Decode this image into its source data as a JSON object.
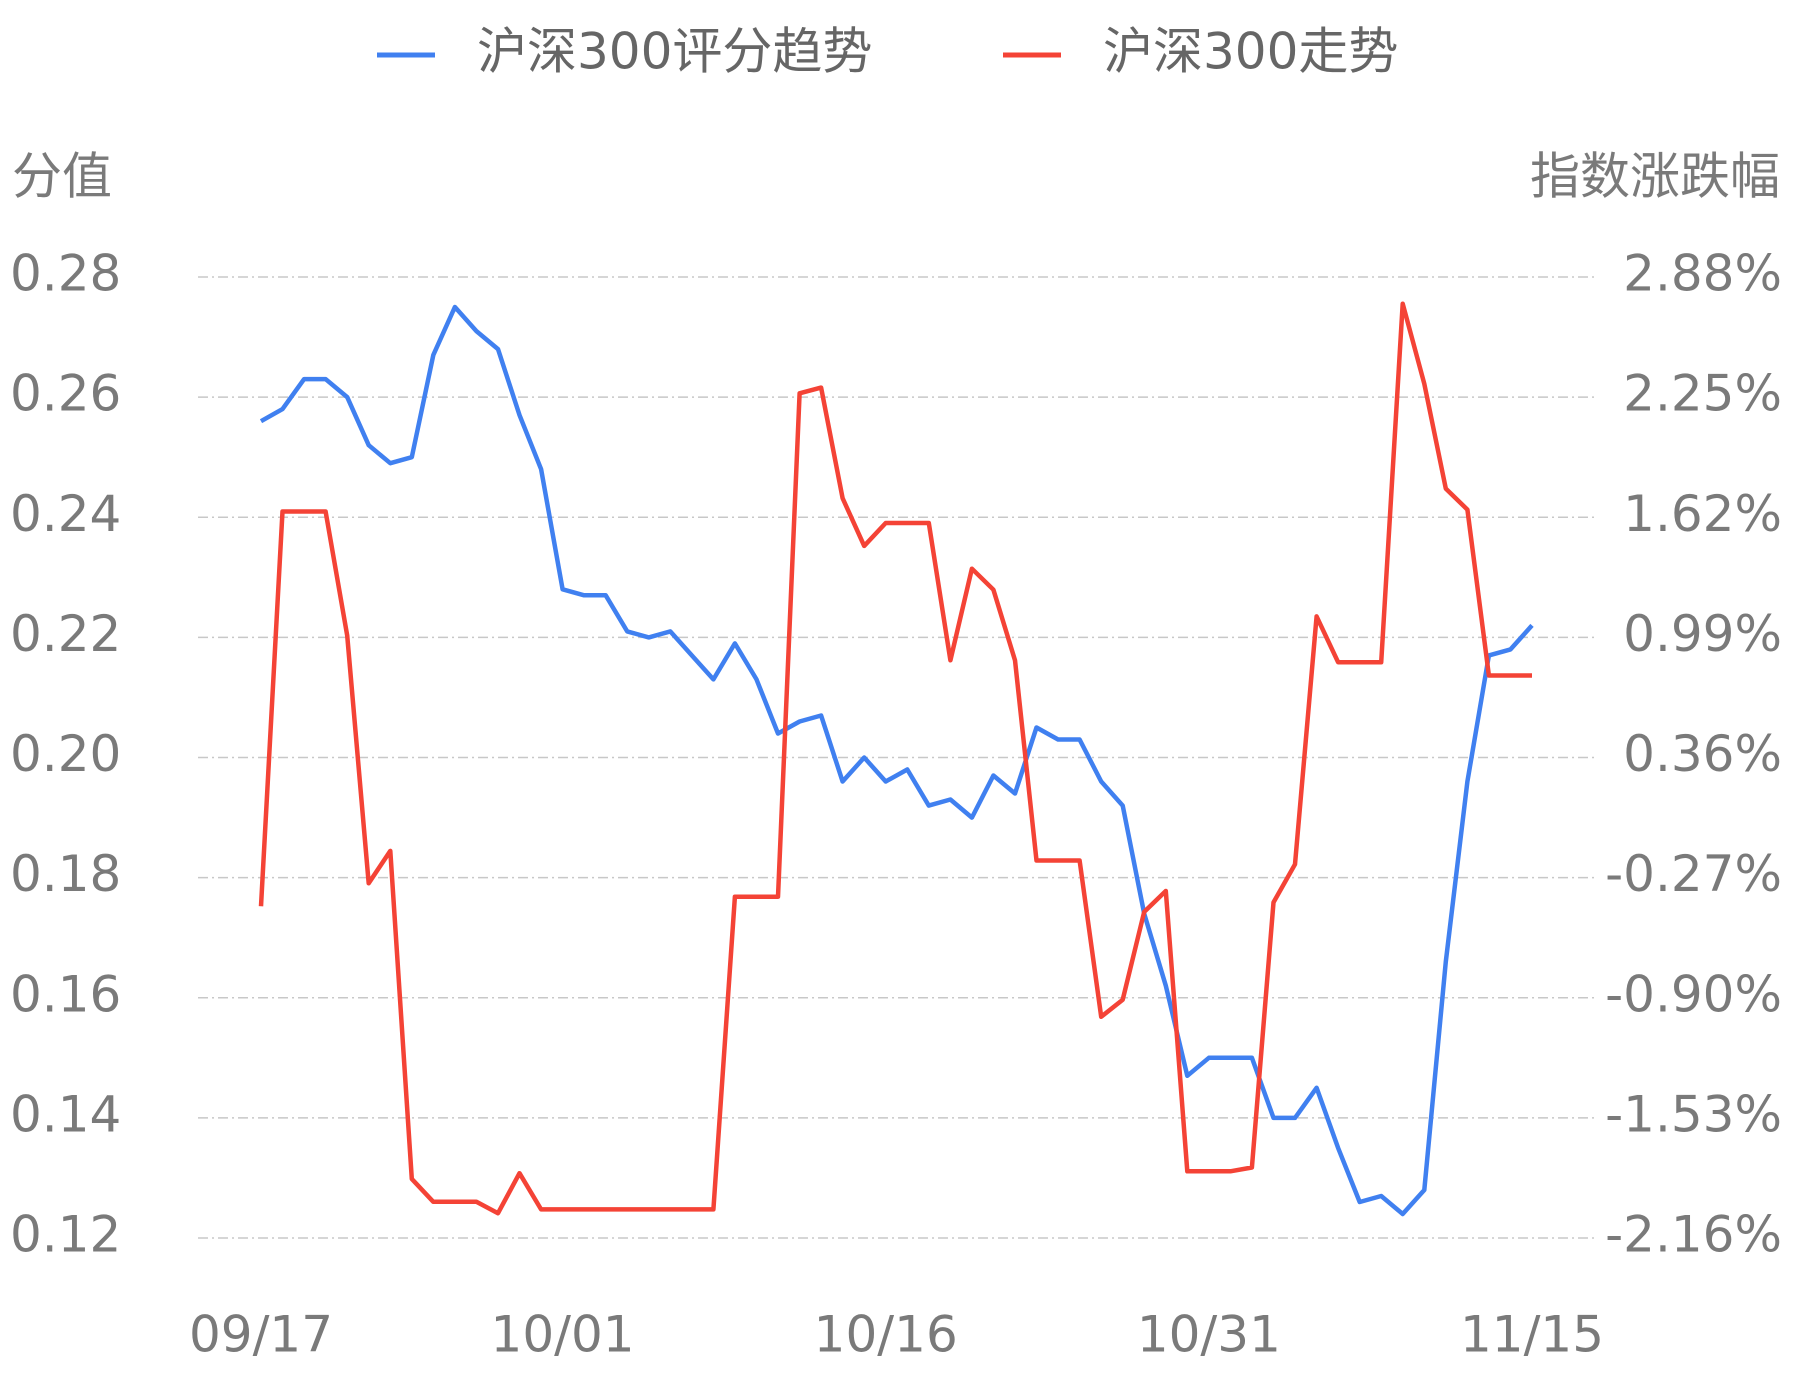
{
  "chart_data": {
    "type": "line",
    "y_label": "分值",
    "y2_label": "指数涨跌幅",
    "categories": [
      "09/17",
      null,
      null,
      null,
      null,
      null,
      null,
      null,
      null,
      null,
      null,
      null,
      null,
      null,
      "10/01",
      null,
      null,
      null,
      null,
      null,
      null,
      null,
      null,
      null,
      null,
      null,
      null,
      null,
      null,
      "10/16",
      null,
      null,
      null,
      null,
      null,
      null,
      null,
      null,
      null,
      null,
      null,
      null,
      null,
      null,
      "10/31",
      null,
      null,
      null,
      null,
      null,
      null,
      null,
      null,
      null,
      null,
      null,
      null,
      null,
      null,
      "11/15"
    ],
    "series": [
      {
        "name": "沪深300评分趋势",
        "color": "#4080f0",
        "values": [
          0.256,
          0.258,
          0.263,
          0.263,
          0.26,
          0.252,
          0.249,
          0.25,
          0.267,
          0.275,
          0.271,
          0.268,
          0.257,
          0.248,
          0.228,
          0.227,
          0.227,
          0.221,
          0.22,
          0.221,
          0.217,
          0.213,
          0.219,
          0.213,
          0.204,
          0.206,
          0.207,
          0.196,
          0.2,
          0.196,
          0.198,
          0.192,
          0.193,
          0.19,
          0.197,
          0.194,
          0.205,
          0.203,
          0.203,
          0.196,
          0.192,
          0.174,
          0.162,
          0.147,
          0.15,
          0.15,
          0.15,
          0.14,
          0.14,
          0.145,
          0.135,
          0.126,
          0.127,
          0.124,
          0.128,
          0.166,
          0.196,
          0.217,
          0.218,
          0.222
        ]
      },
      {
        "name": "沪深300走势",
        "color": "#f44336",
        "axis": "y2",
        "values": [
          -0.42,
          1.65,
          1.65,
          1.65,
          1.0,
          -0.3,
          -0.13,
          -1.85,
          -1.97,
          -1.97,
          -1.97,
          -2.03,
          -1.82,
          -2.01,
          -2.01,
          -2.01,
          -2.01,
          -2.01,
          -2.01,
          -2.01,
          -2.01,
          -2.01,
          -0.37,
          -0.37,
          -0.37,
          2.27,
          2.3,
          1.72,
          1.47,
          1.59,
          1.59,
          1.59,
          0.87,
          1.35,
          1.24,
          0.87,
          -0.18,
          -0.18,
          -0.18,
          -1.0,
          -0.91,
          -0.45,
          -0.34,
          -1.81,
          -1.81,
          -1.81,
          -1.79,
          -0.4,
          -0.2,
          1.1,
          0.86,
          0.86,
          0.86,
          2.74,
          2.32,
          1.77,
          1.66,
          0.79,
          0.79,
          0.79
        ]
      }
    ],
    "ylim": [
      0.12,
      0.28
    ],
    "yticks": [
      {
        "value": 0.12,
        "label": "0.12"
      },
      {
        "value": 0.14,
        "label": "0.14"
      },
      {
        "value": 0.16,
        "label": "0.16"
      },
      {
        "value": 0.18,
        "label": "0.18"
      },
      {
        "value": 0.2,
        "label": "0.20"
      },
      {
        "value": 0.22,
        "label": "0.22"
      },
      {
        "value": 0.24,
        "label": "0.24"
      },
      {
        "value": 0.26,
        "label": "0.26"
      },
      {
        "value": 0.28,
        "label": "0.28"
      }
    ],
    "y2lim": [
      -2.16,
      2.88
    ],
    "y2ticks": [
      {
        "value": -2.16,
        "label": "-2.16%"
      },
      {
        "value": -1.53,
        "label": "-1.53%"
      },
      {
        "value": -0.9,
        "label": "-0.90%"
      },
      {
        "value": -0.27,
        "label": "-0.27%"
      },
      {
        "value": 0.36,
        "label": "0.36%"
      },
      {
        "value": 0.99,
        "label": "0.99%"
      },
      {
        "value": 1.62,
        "label": "1.62%"
      },
      {
        "value": 2.25,
        "label": "2.25%"
      },
      {
        "value": 2.88,
        "label": "2.88%"
      }
    ],
    "grid": true,
    "legend": "top"
  }
}
